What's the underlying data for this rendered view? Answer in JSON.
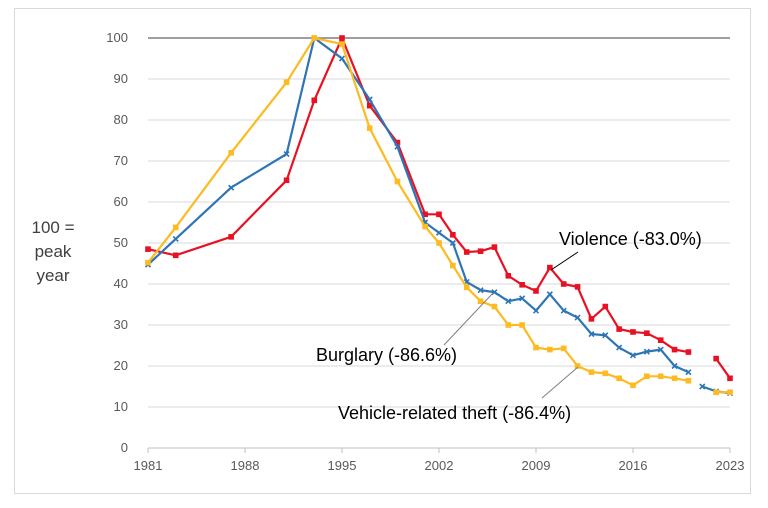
{
  "chart_data": {
    "type": "line",
    "title": "",
    "ylabel_lines": [
      "100 =",
      "peak",
      "year"
    ],
    "xlabel": "",
    "xlim": [
      1981,
      2023
    ],
    "ylim": [
      0,
      100
    ],
    "x_ticks": [
      1981,
      1988,
      1995,
      2002,
      2009,
      2016,
      2023
    ],
    "y_ticks": [
      0,
      10,
      20,
      30,
      40,
      50,
      60,
      70,
      80,
      90,
      100
    ],
    "grid": true,
    "reference_line": 100,
    "series": [
      {
        "name": "Violence (-83.0%)",
        "color": "#e81123",
        "marker": "square",
        "points": [
          [
            1981,
            48.5
          ],
          [
            1983,
            47
          ],
          [
            1987,
            51.5
          ],
          [
            1991,
            65.3
          ],
          [
            1993,
            84.8
          ],
          [
            1995,
            100
          ],
          [
            1997,
            83.5
          ],
          [
            1999,
            74.5
          ],
          [
            2001,
            57
          ],
          [
            2002,
            57
          ],
          [
            2003,
            52
          ],
          [
            2004,
            47.8
          ],
          [
            2005,
            48
          ],
          [
            2006,
            49
          ],
          [
            2007,
            42
          ],
          [
            2008,
            39.8
          ],
          [
            2009,
            38.3
          ],
          [
            2010,
            44
          ],
          [
            2011,
            40
          ],
          [
            2012,
            39.3
          ],
          [
            2013,
            31.5
          ],
          [
            2014,
            34.5
          ],
          [
            2015,
            29
          ],
          [
            2016,
            28.3
          ],
          [
            2017,
            28
          ],
          [
            2018,
            26.3
          ],
          [
            2019,
            24
          ],
          [
            2020,
            23.4
          ],
          [
            null,
            null
          ],
          [
            2022,
            21.8
          ],
          [
            2023,
            17
          ]
        ]
      },
      {
        "name": "Burglary (-86.6%)",
        "color": "#2e75b6",
        "marker": "x",
        "points": [
          [
            1981,
            44.7
          ],
          [
            1983,
            51
          ],
          [
            1987,
            63.5
          ],
          [
            1991,
            71.7
          ],
          [
            1993,
            100
          ],
          [
            1995,
            95
          ],
          [
            1997,
            85
          ],
          [
            1999,
            73.5
          ],
          [
            2001,
            55
          ],
          [
            2002,
            52.5
          ],
          [
            2003,
            50
          ],
          [
            2004,
            40.5
          ],
          [
            2005,
            38.5
          ],
          [
            2006,
            38
          ],
          [
            2007,
            35.8
          ],
          [
            2008,
            36.5
          ],
          [
            2009,
            33.5
          ],
          [
            2010,
            37.5
          ],
          [
            2011,
            33.5
          ],
          [
            2012,
            31.8
          ],
          [
            2013,
            27.8
          ],
          [
            2014,
            27.5
          ],
          [
            2015,
            24.5
          ],
          [
            2016,
            22.6
          ],
          [
            2017,
            23.5
          ],
          [
            2018,
            24
          ],
          [
            2019,
            20
          ],
          [
            2020,
            18.5
          ],
          [
            null,
            null
          ],
          [
            2021,
            15
          ],
          [
            2022,
            13.8
          ],
          [
            2023,
            13.4
          ]
        ]
      },
      {
        "name": "Vehicle-related theft (-86.4%)",
        "color": "#fdba21",
        "marker": "square",
        "points": [
          [
            1981,
            45.2
          ],
          [
            1983,
            53.8
          ],
          [
            1987,
            72
          ],
          [
            1991,
            89.2
          ],
          [
            1993,
            100
          ],
          [
            1995,
            98.5
          ],
          [
            1997,
            78
          ],
          [
            1999,
            65
          ],
          [
            2001,
            54
          ],
          [
            2002,
            50
          ],
          [
            2003,
            44.5
          ],
          [
            2004,
            39.2
          ],
          [
            2005,
            35.8
          ],
          [
            2006,
            34.5
          ],
          [
            2007,
            30
          ],
          [
            2008,
            30
          ],
          [
            2009,
            24.5
          ],
          [
            2010,
            24
          ],
          [
            2011,
            24.3
          ],
          [
            2012,
            20
          ],
          [
            2013,
            18.5
          ],
          [
            2014,
            18.2
          ],
          [
            2015,
            17
          ],
          [
            2016,
            15.3
          ],
          [
            2017,
            17.5
          ],
          [
            2018,
            17.5
          ],
          [
            2019,
            17
          ],
          [
            2020,
            16.4
          ],
          [
            null,
            null
          ],
          [
            2022,
            13.6
          ],
          [
            2023,
            13.6
          ]
        ]
      }
    ]
  }
}
